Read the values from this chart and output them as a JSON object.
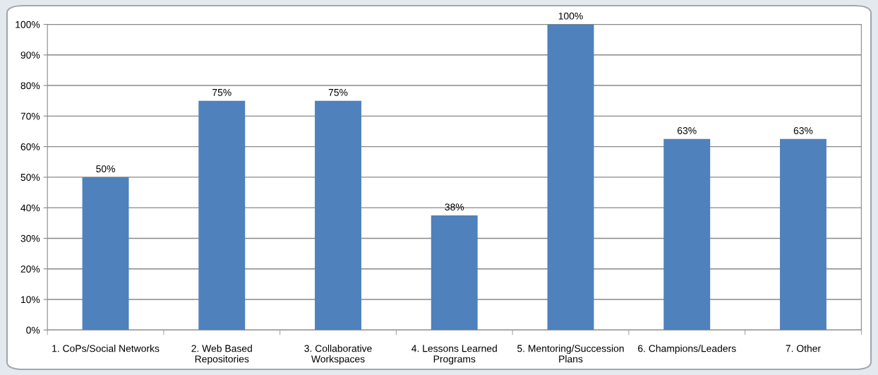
{
  "chart_data": {
    "type": "bar",
    "categories": [
      "1. CoPs/Social Networks",
      "2. Web Based\nRepositories",
      "3. Collaborative\nWorkspaces",
      "4. Lessons Learned\nPrograms",
      "5. Mentoring/Succession\nPlans",
      "6. Champions/Leaders",
      "7. Other"
    ],
    "values": [
      50,
      75,
      75,
      37.5,
      100,
      62.5,
      62.5
    ],
    "value_labels": [
      "50%",
      "75%",
      "75%",
      "38%",
      "100%",
      "63%",
      "63%"
    ],
    "color": "#4f81bd",
    "ylim": [
      0,
      100
    ],
    "yticks": [
      {
        "value": 0,
        "label": "0%"
      },
      {
        "value": 10,
        "label": "10%"
      },
      {
        "value": 20,
        "label": "20%"
      },
      {
        "value": 30,
        "label": "30%"
      },
      {
        "value": 40,
        "label": "40%"
      },
      {
        "value": 50,
        "label": "50%"
      },
      {
        "value": 60,
        "label": "60%"
      },
      {
        "value": 70,
        "label": "70%"
      },
      {
        "value": 80,
        "label": "80%"
      },
      {
        "value": 90,
        "label": "90%"
      },
      {
        "value": 100,
        "label": "100%"
      }
    ],
    "grid": "y"
  }
}
